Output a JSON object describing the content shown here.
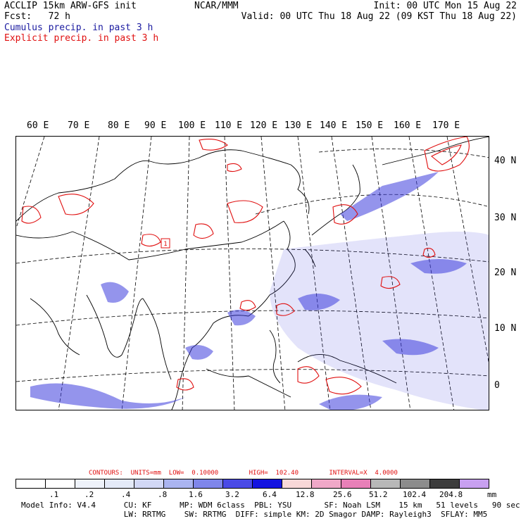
{
  "header": {
    "title": "ACCLIP 15km ARW-GFS init",
    "fcst": "Fcst:   72 h",
    "center": "NCAR/MMM",
    "init": "Init: 00 UTC Mon 15 Aug 22",
    "valid": "Valid: 00 UTC Thu 18 Aug 22 (09 KST Thu 18 Aug 22)",
    "cumulus": "Cumulus precip. in past 3 h",
    "explicit": "Explicit precip. in past 3 h"
  },
  "lon_labels": [
    "60 E",
    "70 E",
    "80 E",
    "90 E",
    "100 E",
    "110 E",
    "120 E",
    "130 E",
    "140 E",
    "150 E",
    "160 E",
    "170 E"
  ],
  "lat_labels": [
    "40 N",
    "30 N",
    "20 N",
    "10 N",
    "0"
  ],
  "map": {
    "marker_label": "1",
    "colors": {
      "cumulus": "#3c3cdc",
      "explicit": "#e01010",
      "coast": "#000000",
      "grid": "#000000"
    }
  },
  "contours": {
    "label": "CONTOURS:  UNITS=mm  LOW=  0.10000        HIGH=  102.40        INTERVAL=X  4.0000"
  },
  "colorbar": {
    "colors": [
      "#ffffff",
      "#ffffff",
      "#eef2fa",
      "#e4eaf8",
      "#d2d8f6",
      "#aab4f0",
      "#7f86ea",
      "#4a4ae6",
      "#1414e0",
      "#f8d8d8",
      "#f0a8c8",
      "#e880b8",
      "#b8b8b8",
      "#8c8c8c",
      "#3c3c3c",
      "#c8a0f0"
    ],
    "ticks": [
      ".1",
      ".2",
      ".4",
      ".8",
      "1.6",
      "3.2",
      "6.4",
      "12.8",
      "25.6",
      "51.2",
      "102.4",
      "204.8"
    ],
    "units": "mm"
  },
  "footer": {
    "line1": "Model Info: V4.4      CU: KF      MP: WDM 6class  PBL: YSU       SF: Noah LSM    15 km   51 levels   90 sec",
    "line2": "                      LW: RRTMG    SW: RRTMG  DIFF: simple KM: 2D Smagor DAMP: Rayleigh3  SFLAY: MM5"
  }
}
